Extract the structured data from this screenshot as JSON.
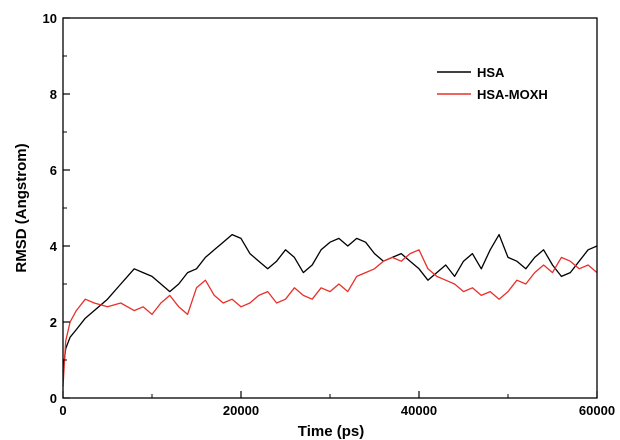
{
  "chart_data": {
    "type": "line",
    "title": "",
    "xlabel": "Time (ps)",
    "ylabel": "RMSD (Angstrom)",
    "xlim": [
      0,
      60000
    ],
    "ylim": [
      0,
      10
    ],
    "xticks": [
      "0",
      "20000",
      "40000",
      "60000"
    ],
    "yticks": [
      "0",
      "2",
      "4",
      "6",
      "8",
      "10"
    ],
    "grid": false,
    "legend_position": "top-right",
    "series": [
      {
        "name": "HSA",
        "color": "#000000",
        "x": [
          0,
          300,
          800,
          1500,
          2500,
          3500,
          5000,
          6500,
          8000,
          9000,
          10000,
          11000,
          12000,
          13000,
          14000,
          15000,
          16000,
          17000,
          18000,
          19000,
          20000,
          21000,
          22000,
          23000,
          24000,
          25000,
          26000,
          27000,
          28000,
          29000,
          30000,
          31000,
          32000,
          33000,
          34000,
          35000,
          36000,
          37000,
          38000,
          39000,
          40000,
          41000,
          42000,
          43000,
          44000,
          45000,
          46000,
          47000,
          48000,
          49000,
          50000,
          51000,
          52000,
          53000,
          54000,
          55000,
          56000,
          57000,
          58000,
          59000,
          60000
        ],
        "values": [
          0.7,
          1.3,
          1.6,
          1.8,
          2.1,
          2.3,
          2.6,
          3.0,
          3.4,
          3.3,
          3.2,
          3.0,
          2.8,
          3.0,
          3.3,
          3.4,
          3.7,
          3.9,
          4.1,
          4.3,
          4.2,
          3.8,
          3.6,
          3.4,
          3.6,
          3.9,
          3.7,
          3.3,
          3.5,
          3.9,
          4.1,
          4.2,
          4.0,
          4.2,
          4.1,
          3.8,
          3.6,
          3.7,
          3.8,
          3.6,
          3.4,
          3.1,
          3.3,
          3.5,
          3.2,
          3.6,
          3.8,
          3.4,
          3.9,
          4.3,
          3.7,
          3.6,
          3.4,
          3.7,
          3.9,
          3.5,
          3.2,
          3.3,
          3.6,
          3.9,
          4.0
        ]
      },
      {
        "name": "HSA-MOXH",
        "color": "#e8302a",
        "x": [
          0,
          300,
          800,
          1500,
          2500,
          3500,
          5000,
          6500,
          8000,
          9000,
          10000,
          11000,
          12000,
          13000,
          14000,
          15000,
          16000,
          17000,
          18000,
          19000,
          20000,
          21000,
          22000,
          23000,
          24000,
          25000,
          26000,
          27000,
          28000,
          29000,
          30000,
          31000,
          32000,
          33000,
          34000,
          35000,
          36000,
          37000,
          38000,
          39000,
          40000,
          41000,
          42000,
          43000,
          44000,
          45000,
          46000,
          47000,
          48000,
          49000,
          50000,
          51000,
          52000,
          53000,
          54000,
          55000,
          56000,
          57000,
          58000,
          59000,
          60000
        ],
        "values": [
          0.3,
          1.5,
          2.0,
          2.3,
          2.6,
          2.5,
          2.4,
          2.5,
          2.3,
          2.4,
          2.2,
          2.5,
          2.7,
          2.4,
          2.2,
          2.9,
          3.1,
          2.7,
          2.5,
          2.6,
          2.4,
          2.5,
          2.7,
          2.8,
          2.5,
          2.6,
          2.9,
          2.7,
          2.6,
          2.9,
          2.8,
          3.0,
          2.8,
          3.2,
          3.3,
          3.4,
          3.6,
          3.7,
          3.6,
          3.8,
          3.9,
          3.4,
          3.2,
          3.1,
          3.0,
          2.8,
          2.9,
          2.7,
          2.8,
          2.6,
          2.8,
          3.1,
          3.0,
          3.3,
          3.5,
          3.3,
          3.7,
          3.6,
          3.4,
          3.5,
          3.3
        ]
      }
    ]
  }
}
